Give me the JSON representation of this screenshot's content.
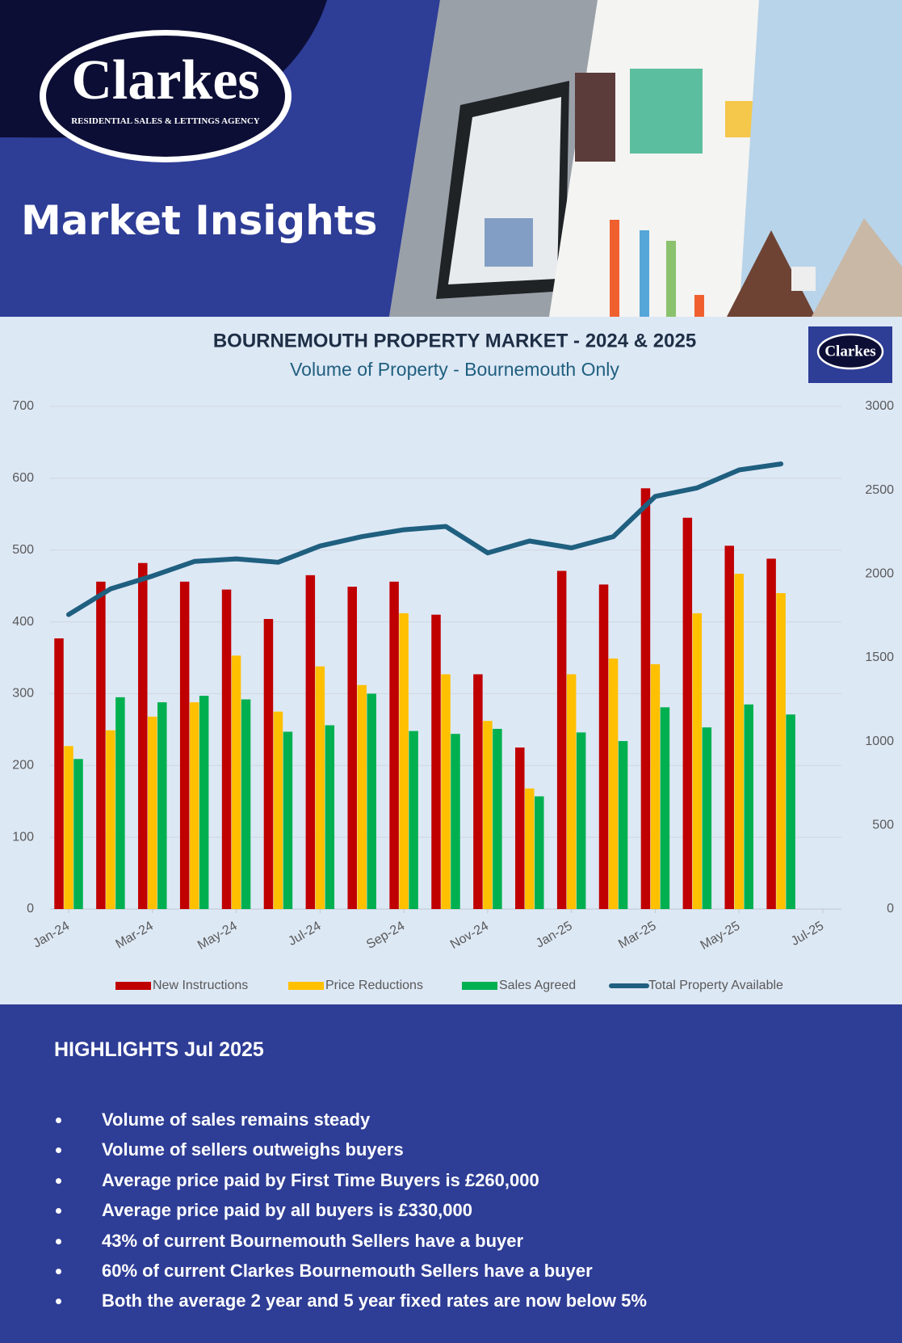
{
  "header": {
    "brand": "Clarkes",
    "tagline": "RESIDENTIAL SALES & LETTINGS AGENCY",
    "title": "Market Insights"
  },
  "chart_data": {
    "type": "bar",
    "title": "BOURNEMOUTH PROPERTY MARKET - 2024 & 2025",
    "subtitle": "Volume of Property - Bournemouth Only",
    "x": [
      "2024-01",
      "2024-02",
      "2024-03",
      "2024-04",
      "2024-05",
      "2024-06",
      "2024-07",
      "2024-08",
      "2024-09",
      "2024-10",
      "2024-11",
      "2024-12",
      "2025-01",
      "2025-02",
      "2025-03",
      "2025-04",
      "2025-05",
      "2025-06"
    ],
    "xlim": [
      "2024-01",
      "2025-07"
    ],
    "xticks": [
      {
        "value": "2024-01",
        "label": "Jan-24"
      },
      {
        "value": "2024-03",
        "label": "Mar-24"
      },
      {
        "value": "2024-05",
        "label": "May-24"
      },
      {
        "value": "2024-07",
        "label": "Jul-24"
      },
      {
        "value": "2024-09",
        "label": "Sep-24"
      },
      {
        "value": "2024-11",
        "label": "Nov-24"
      },
      {
        "value": "2025-01",
        "label": "Jan-25"
      },
      {
        "value": "2025-03",
        "label": "Mar-25"
      },
      {
        "value": "2025-05",
        "label": "May-25"
      },
      {
        "value": "2025-07",
        "label": "Jul-25"
      }
    ],
    "ylim": [
      0,
      700
    ],
    "yticks": [
      0,
      100,
      200,
      300,
      400,
      500,
      600,
      700
    ],
    "y2lim": [
      0,
      3000
    ],
    "y2ticks": [
      0,
      500,
      1000,
      1500,
      2000,
      2500,
      3000
    ],
    "grid": true,
    "series": [
      {
        "name": "New Instructions",
        "color": "#c00000",
        "type": "bar",
        "values": [
          377,
          456,
          482,
          456,
          445,
          404,
          465,
          449,
          456,
          410,
          327,
          225,
          471,
          452,
          586,
          545,
          506,
          488
        ]
      },
      {
        "name": "Price Reductions",
        "color": "#ffc000",
        "type": "bar",
        "values": [
          227,
          249,
          268,
          288,
          353,
          275,
          338,
          312,
          412,
          327,
          262,
          168,
          327,
          349,
          341,
          412,
          467,
          440
        ]
      },
      {
        "name": "Sales Agreed",
        "color": "#00b050",
        "type": "bar",
        "values": [
          209,
          295,
          288,
          297,
          292,
          247,
          256,
          300,
          248,
          244,
          251,
          157,
          246,
          234,
          281,
          253,
          285,
          271
        ]
      },
      {
        "name": "Total Property Available",
        "color": "#1f5f7f",
        "type": "line",
        "axis": "y2",
        "values": [
          1758,
          1911,
          1988,
          2075,
          2090,
          2070,
          2167,
          2223,
          2264,
          2284,
          2126,
          2197,
          2156,
          2223,
          2463,
          2514,
          2621,
          2657
        ]
      }
    ]
  },
  "highlights": {
    "title": "HIGHLIGHTS Jul 2025",
    "items": [
      "Volume of sales remains steady",
      "Volume of  sellers outweighs buyers",
      "Average price paid by First Time Buyers is £260,000",
      "Average price paid by all buyers is £330,000",
      "43% of current Bournemouth Sellers have a buyer",
      "60% of current Clarkes Bournemouth Sellers have a buyer",
      "Both the average 2 year and 5 year fixed rates are now below 5%"
    ]
  }
}
